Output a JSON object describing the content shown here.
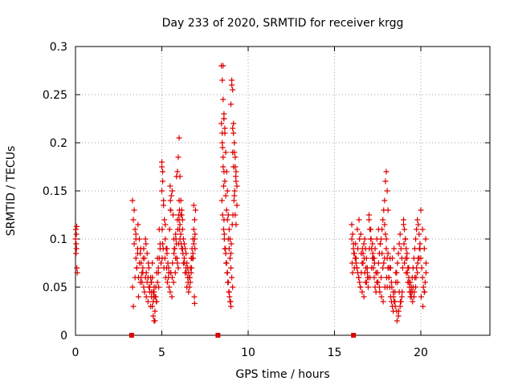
{
  "chart_data": {
    "type": "scatter",
    "title": "Day 233 of 2020, SRMTID for receiver krgg",
    "xlabel": "GPS time / hours",
    "ylabel": "SRMTID / TECUs",
    "xlim": [
      0,
      24
    ],
    "ylim": [
      0,
      0.3
    ],
    "x_ticks": [
      0,
      5,
      10,
      15,
      20
    ],
    "x_tick_labels": [
      "0",
      "5",
      "10",
      "15",
      "20"
    ],
    "y_ticks": [
      0,
      0.05,
      0.1,
      0.15,
      0.2,
      0.25,
      0.3
    ],
    "y_tick_labels": [
      "0",
      "0.05",
      "0.1",
      "0.15",
      "0.2",
      "0.25",
      "0.3"
    ],
    "grid": true,
    "marker": "+",
    "marker_color": "#dd0000",
    "series": [
      {
        "name": "SRMTID",
        "color": "#dd0000",
        "x": [
          0.0,
          0.02,
          0.04,
          0.06,
          0.08,
          0.1,
          0.05,
          0.07,
          0.03,
          3.3,
          3.35,
          3.4,
          3.45,
          3.5,
          3.55,
          3.6,
          3.65,
          3.7,
          3.75,
          3.8,
          3.85,
          3.9,
          3.95,
          4.0,
          4.05,
          4.1,
          4.15,
          4.2,
          4.25,
          4.3,
          4.35,
          4.4,
          4.45,
          4.5,
          4.55,
          4.6,
          4.65,
          4.7,
          4.75,
          4.8,
          4.85,
          4.9,
          4.95,
          3.4,
          3.5,
          3.6,
          3.7,
          3.8,
          3.9,
          4.0,
          4.1,
          4.2,
          4.3,
          4.4,
          4.5,
          4.6,
          4.7,
          4.8,
          4.9,
          3.3,
          3.45,
          3.55,
          3.65,
          3.75,
          3.85,
          3.95,
          4.05,
          4.15,
          4.25,
          4.35,
          4.45,
          4.55,
          4.65,
          4.75,
          4.85,
          3.35,
          3.5,
          3.62,
          3.78,
          3.92,
          4.08,
          4.22,
          4.38,
          4.52,
          4.68,
          4.82,
          4.5,
          4.55,
          4.6,
          4.45,
          4.4,
          5.0,
          5.05,
          5.1,
          5.15,
          5.2,
          5.25,
          5.3,
          5.35,
          5.4,
          5.45,
          5.5,
          5.55,
          5.6,
          5.65,
          5.7,
          5.75,
          5.8,
          5.85,
          5.9,
          5.95,
          5.0,
          5.05,
          5.1,
          5.2,
          5.3,
          5.4,
          5.5,
          5.6,
          5.7,
          5.8,
          5.9,
          5.02,
          5.12,
          5.22,
          5.32,
          5.42,
          5.52,
          5.62,
          5.72,
          5.82,
          5.92,
          5.08,
          5.18,
          5.28,
          5.38,
          5.48,
          5.58,
          5.68,
          5.78,
          5.88,
          5.98,
          5.0,
          5.02,
          5.05,
          5.48,
          5.5,
          5.52,
          5.85,
          5.9,
          5.95,
          5.98,
          6.0,
          6.05,
          6.1,
          6.15,
          6.2,
          6.25,
          6.3,
          6.35,
          6.4,
          6.45,
          6.5,
          6.55,
          6.6,
          6.65,
          6.7,
          6.75,
          6.8,
          6.85,
          6.9,
          6.95,
          6.0,
          6.1,
          6.2,
          6.3,
          6.4,
          6.5,
          6.6,
          6.7,
          6.8,
          6.9,
          6.02,
          6.12,
          6.22,
          6.32,
          6.42,
          6.52,
          6.62,
          6.72,
          6.82,
          6.92,
          6.05,
          6.15,
          6.25,
          6.35,
          6.45,
          6.55,
          6.65,
          6.75,
          6.85,
          6.0,
          6.02,
          6.05,
          6.1,
          6.15,
          6.2,
          6.85,
          6.88,
          6.9,
          6.92,
          8.45,
          8.5,
          8.55,
          8.6,
          8.65,
          8.7,
          8.75,
          8.8,
          8.85,
          8.9,
          8.95,
          9.0,
          9.05,
          9.1,
          9.15,
          9.2,
          9.25,
          9.3,
          9.35,
          8.45,
          8.5,
          8.55,
          8.6,
          8.65,
          8.7,
          8.75,
          8.8,
          8.85,
          8.9,
          8.95,
          9.0,
          9.05,
          9.1,
          9.15,
          9.2,
          9.25,
          9.3,
          8.48,
          8.52,
          8.58,
          8.62,
          8.68,
          8.72,
          8.78,
          8.82,
          8.88,
          8.92,
          8.98,
          9.02,
          9.08,
          9.12,
          9.18,
          9.22,
          9.28,
          8.55,
          8.6,
          8.65,
          8.6,
          9.0,
          9.05,
          9.1,
          9.1,
          9.15,
          9.2,
          9.25,
          9.3,
          9.35,
          8.5,
          8.52,
          8.55,
          8.58,
          8.6,
          8.62,
          8.65,
          8.7,
          8.75,
          8.8,
          8.85,
          8.9,
          8.95,
          9.0,
          16.0,
          16.05,
          16.1,
          16.15,
          16.2,
          16.25,
          16.3,
          16.35,
          16.4,
          16.45,
          16.5,
          16.55,
          16.6,
          16.65,
          16.7,
          16.75,
          16.8,
          16.85,
          16.9,
          16.95,
          16.0,
          16.1,
          16.2,
          16.3,
          16.4,
          16.5,
          16.6,
          16.7,
          16.8,
          16.9,
          16.02,
          16.12,
          16.22,
          16.32,
          16.42,
          16.52,
          16.62,
          16.72,
          16.82,
          16.92,
          16.05,
          16.15,
          16.25,
          16.35,
          16.45,
          16.55,
          16.65,
          16.75,
          16.85,
          16.95,
          17.0,
          17.05,
          17.1,
          17.15,
          17.2,
          17.25,
          17.3,
          17.35,
          17.4,
          17.45,
          17.5,
          17.55,
          17.6,
          17.65,
          17.7,
          17.75,
          17.8,
          17.85,
          17.9,
          17.95,
          17.0,
          17.1,
          17.2,
          17.3,
          17.4,
          17.5,
          17.6,
          17.7,
          17.8,
          17.9,
          17.02,
          17.12,
          17.22,
          17.32,
          17.42,
          17.52,
          17.62,
          17.72,
          17.82,
          17.92,
          17.05,
          17.15,
          17.25,
          17.35,
          17.45,
          17.55,
          17.65,
          17.75,
          17.85,
          17.9,
          17.95,
          18.0,
          18.05,
          18.1,
          18.0,
          18.05,
          18.1,
          18.15,
          18.2,
          18.25,
          18.3,
          18.35,
          18.4,
          18.45,
          18.5,
          18.55,
          18.6,
          18.65,
          18.7,
          18.75,
          18.8,
          18.85,
          18.9,
          18.95,
          18.0,
          18.1,
          18.2,
          18.3,
          18.4,
          18.5,
          18.6,
          18.7,
          18.8,
          18.9,
          18.02,
          18.12,
          18.22,
          18.32,
          18.42,
          18.52,
          18.62,
          18.72,
          18.82,
          18.92,
          18.05,
          18.15,
          18.25,
          18.35,
          18.45,
          18.55,
          18.65,
          18.75,
          18.85,
          19.0,
          19.05,
          19.1,
          19.15,
          19.2,
          19.25,
          19.3,
          19.35,
          19.4,
          19.45,
          19.5,
          19.55,
          19.6,
          19.65,
          19.7,
          19.75,
          19.8,
          19.85,
          19.9,
          19.95,
          19.0,
          19.1,
          19.2,
          19.3,
          19.4,
          19.5,
          19.6,
          19.7,
          19.8,
          19.9,
          19.02,
          19.12,
          19.22,
          19.32,
          19.42,
          19.52,
          19.62,
          19.72,
          19.82,
          19.92,
          19.05,
          19.15,
          19.25,
          19.35,
          19.45,
          19.55,
          19.65,
          19.75,
          19.85,
          19.95,
          20.0,
          20.05,
          20.1,
          20.15,
          20.2,
          20.25,
          20.3,
          20.0,
          20.1,
          20.2,
          20.3,
          20.02,
          20.12,
          20.22,
          20.28
        ],
        "y": [
          0.1,
          0.11,
          0.095,
          0.09,
          0.07,
          0.065,
          0.105,
          0.113,
          0.085,
          0.14,
          0.12,
          0.095,
          0.11,
          0.08,
          0.07,
          0.09,
          0.06,
          0.1,
          0.085,
          0.075,
          0.055,
          0.065,
          0.05,
          0.045,
          0.06,
          0.04,
          0.055,
          0.035,
          0.05,
          0.045,
          0.03,
          0.04,
          0.06,
          0.035,
          0.045,
          0.015,
          0.05,
          0.065,
          0.055,
          0.07,
          0.08,
          0.09,
          0.075,
          0.13,
          0.1,
          0.085,
          0.075,
          0.06,
          0.07,
          0.08,
          0.065,
          0.06,
          0.05,
          0.055,
          0.045,
          0.04,
          0.035,
          0.065,
          0.095,
          0.05,
          0.06,
          0.07,
          0.04,
          0.055,
          0.065,
          0.09,
          0.1,
          0.085,
          0.07,
          0.06,
          0.075,
          0.05,
          0.04,
          0.08,
          0.11,
          0.03,
          0.105,
          0.115,
          0.09,
          0.08,
          0.095,
          0.075,
          0.055,
          0.04,
          0.035,
          0.05,
          0.02,
          0.015,
          0.025,
          0.03,
          0.045,
          0.18,
          0.17,
          0.14,
          0.12,
          0.1,
          0.09,
          0.085,
          0.075,
          0.065,
          0.11,
          0.13,
          0.145,
          0.15,
          0.125,
          0.1,
          0.09,
          0.08,
          0.095,
          0.075,
          0.07,
          0.175,
          0.16,
          0.135,
          0.115,
          0.09,
          0.07,
          0.065,
          0.06,
          0.085,
          0.105,
          0.12,
          0.08,
          0.07,
          0.06,
          0.055,
          0.05,
          0.065,
          0.075,
          0.09,
          0.1,
          0.11,
          0.09,
          0.08,
          0.07,
          0.06,
          0.045,
          0.04,
          0.055,
          0.065,
          0.08,
          0.095,
          0.15,
          0.11,
          0.095,
          0.155,
          0.14,
          0.13,
          0.165,
          0.17,
          0.185,
          0.125,
          0.205,
          0.165,
          0.14,
          0.125,
          0.11,
          0.1,
          0.095,
          0.09,
          0.085,
          0.075,
          0.07,
          0.065,
          0.06,
          0.055,
          0.08,
          0.09,
          0.1,
          0.11,
          0.12,
          0.13,
          0.12,
          0.105,
          0.09,
          0.08,
          0.07,
          0.06,
          0.05,
          0.065,
          0.085,
          0.1,
          0.11,
          0.095,
          0.085,
          0.075,
          0.065,
          0.055,
          0.06,
          0.07,
          0.08,
          0.09,
          0.1,
          0.09,
          0.075,
          0.065,
          0.05,
          0.045,
          0.07,
          0.08,
          0.095,
          0.14,
          0.13,
          0.115,
          0.125,
          0.13,
          0.12,
          0.135,
          0.04,
          0.033,
          0.105,
          0.28,
          0.265,
          0.245,
          0.225,
          0.21,
          0.19,
          0.17,
          0.15,
          0.125,
          0.11,
          0.1,
          0.085,
          0.265,
          0.255,
          0.22,
          0.2,
          0.185,
          0.17,
          0.155,
          0.22,
          0.2,
          0.185,
          0.17,
          0.16,
          0.145,
          0.13,
          0.12,
          0.1,
          0.09,
          0.08,
          0.07,
          0.06,
          0.05,
          0.21,
          0.19,
          0.175,
          0.16,
          0.14,
          0.125,
          0.11,
          0.1,
          0.09,
          0.075,
          0.065,
          0.055,
          0.045,
          0.04,
          0.035,
          0.095,
          0.115,
          0.125,
          0.14,
          0.15,
          0.165,
          0.28,
          0.225,
          0.215,
          0.23,
          0.24,
          0.26,
          0.215,
          0.19,
          0.175,
          0.145,
          0.125,
          0.115,
          0.135,
          0.21,
          0.195,
          0.175,
          0.155,
          0.12,
          0.105,
          0.09,
          0.085,
          0.075,
          0.065,
          0.055,
          0.045,
          0.035,
          0.03,
          0.115,
          0.105,
          0.095,
          0.085,
          0.08,
          0.075,
          0.07,
          0.065,
          0.06,
          0.055,
          0.05,
          0.065,
          0.075,
          0.085,
          0.095,
          0.1,
          0.09,
          0.08,
          0.07,
          0.06,
          0.1,
          0.09,
          0.08,
          0.07,
          0.06,
          0.05,
          0.045,
          0.04,
          0.055,
          0.065,
          0.075,
          0.085,
          0.095,
          0.11,
          0.12,
          0.105,
          0.09,
          0.08,
          0.07,
          0.06,
          0.065,
          0.07,
          0.08,
          0.09,
          0.1,
          0.085,
          0.075,
          0.065,
          0.055,
          0.05,
          0.12,
          0.11,
          0.1,
          0.09,
          0.08,
          0.07,
          0.06,
          0.05,
          0.045,
          0.055,
          0.065,
          0.075,
          0.085,
          0.095,
          0.1,
          0.11,
          0.12,
          0.13,
          0.115,
          0.105,
          0.125,
          0.11,
          0.095,
          0.08,
          0.065,
          0.055,
          0.05,
          0.06,
          0.07,
          0.08,
          0.09,
          0.1,
          0.085,
          0.075,
          0.065,
          0.055,
          0.045,
          0.04,
          0.035,
          0.05,
          0.06,
          0.07,
          0.08,
          0.09,
          0.1,
          0.11,
          0.095,
          0.085,
          0.075,
          0.14,
          0.16,
          0.17,
          0.15,
          0.13,
          0.09,
          0.08,
          0.07,
          0.06,
          0.05,
          0.04,
          0.035,
          0.03,
          0.025,
          0.035,
          0.045,
          0.055,
          0.065,
          0.075,
          0.085,
          0.095,
          0.105,
          0.09,
          0.08,
          0.07,
          0.1,
          0.085,
          0.07,
          0.055,
          0.045,
          0.035,
          0.025,
          0.02,
          0.03,
          0.04,
          0.06,
          0.07,
          0.08,
          0.05,
          0.04,
          0.03,
          0.015,
          0.025,
          0.035,
          0.045,
          0.05,
          0.06,
          0.07,
          0.08,
          0.09,
          0.065,
          0.055,
          0.045,
          0.035,
          0.12,
          0.11,
          0.1,
          0.09,
          0.08,
          0.07,
          0.06,
          0.05,
          0.04,
          0.05,
          0.06,
          0.07,
          0.08,
          0.09,
          0.1,
          0.11,
          0.12,
          0.115,
          0.105,
          0.095,
          0.115,
          0.1,
          0.085,
          0.07,
          0.055,
          0.045,
          0.04,
          0.05,
          0.065,
          0.08,
          0.095,
          0.08,
          0.065,
          0.055,
          0.045,
          0.035,
          0.045,
          0.06,
          0.075,
          0.09,
          0.075,
          0.065,
          0.055,
          0.045,
          0.04,
          0.05,
          0.06,
          0.07,
          0.08,
          0.09,
          0.08,
          0.07,
          0.06,
          0.05,
          0.045,
          0.055,
          0.065,
          0.13,
          0.11,
          0.09,
          0.075,
          0.04,
          0.03,
          0.045,
          0.1
        ]
      }
    ],
    "baseline_markers": {
      "x": [
        3.25,
        8.25,
        16.1
      ],
      "y": [
        0,
        0,
        0
      ]
    }
  }
}
